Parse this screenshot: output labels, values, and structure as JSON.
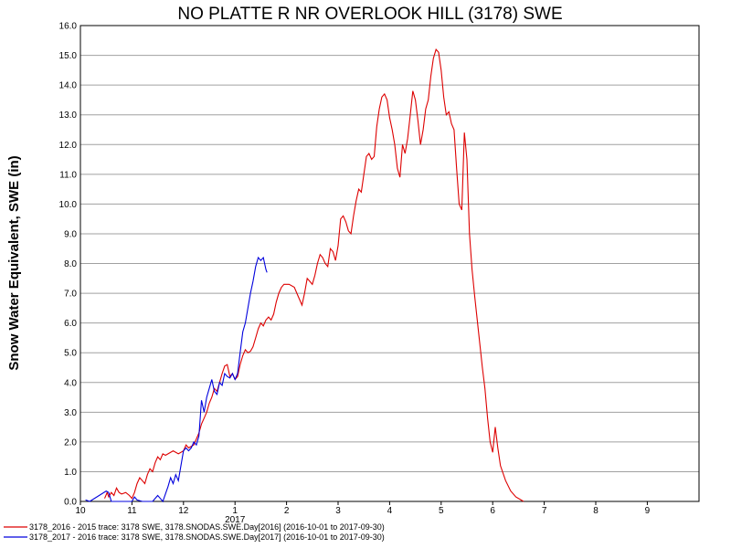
{
  "chart_data": {
    "type": "line",
    "title": "NO PLATTE R NR OVERLOOK HILL (3178) SWE",
    "ylabel": "Snow Water Equivalent, SWE (in)",
    "xlabel": "",
    "ylim": [
      0,
      16
    ],
    "yticks": [
      "0.0",
      "1.0",
      "2.0",
      "3.0",
      "4.0",
      "5.0",
      "6.0",
      "7.0",
      "8.0",
      "9.0",
      "10.0",
      "11.0",
      "12.0",
      "13.0",
      "14.0",
      "15.0",
      "16.0"
    ],
    "xlim": [
      0,
      12
    ],
    "xticks": [
      {
        "x": 0,
        "label": "10"
      },
      {
        "x": 1,
        "label": "11"
      },
      {
        "x": 2,
        "label": "12"
      },
      {
        "x": 3,
        "label": "1"
      },
      {
        "x": 4,
        "label": "2"
      },
      {
        "x": 5,
        "label": "3"
      },
      {
        "x": 6,
        "label": "4"
      },
      {
        "x": 7,
        "label": "5"
      },
      {
        "x": 8,
        "label": "6"
      },
      {
        "x": 9,
        "label": "7"
      },
      {
        "x": 10,
        "label": "8"
      },
      {
        "x": 11,
        "label": "9"
      }
    ],
    "year_label": {
      "x": 3,
      "label": "2017"
    },
    "grid": true,
    "legend_placement": "bottom",
    "series": [
      {
        "name": "3178_2016 - 2015 trace: 3178 SWE, 3178.SNODAS.SWE.Day[2016] (2016-10-01 to 2017-09-30)",
        "color": "#dd0000",
        "points": [
          [
            0.47,
            0.1
          ],
          [
            0.52,
            0.3
          ],
          [
            0.55,
            0.15
          ],
          [
            0.6,
            0.3
          ],
          [
            0.65,
            0.2
          ],
          [
            0.7,
            0.45
          ],
          [
            0.75,
            0.3
          ],
          [
            0.8,
            0.25
          ],
          [
            0.88,
            0.3
          ],
          [
            0.95,
            0.2
          ],
          [
            1.0,
            0.1
          ],
          [
            1.05,
            0.3
          ],
          [
            1.1,
            0.6
          ],
          [
            1.15,
            0.8
          ],
          [
            1.2,
            0.7
          ],
          [
            1.25,
            0.6
          ],
          [
            1.3,
            0.9
          ],
          [
            1.35,
            1.1
          ],
          [
            1.4,
            1.0
          ],
          [
            1.45,
            1.3
          ],
          [
            1.5,
            1.5
          ],
          [
            1.55,
            1.4
          ],
          [
            1.6,
            1.6
          ],
          [
            1.65,
            1.55
          ],
          [
            1.7,
            1.6
          ],
          [
            1.8,
            1.7
          ],
          [
            1.9,
            1.6
          ],
          [
            2.0,
            1.7
          ],
          [
            2.05,
            1.9
          ],
          [
            2.1,
            1.8
          ],
          [
            2.2,
            1.9
          ],
          [
            2.25,
            2.1
          ],
          [
            2.3,
            2.3
          ],
          [
            2.35,
            2.6
          ],
          [
            2.4,
            2.8
          ],
          [
            2.45,
            3.0
          ],
          [
            2.5,
            3.3
          ],
          [
            2.55,
            3.5
          ],
          [
            2.6,
            3.8
          ],
          [
            2.65,
            3.7
          ],
          [
            2.7,
            4.0
          ],
          [
            2.75,
            4.3
          ],
          [
            2.8,
            4.55
          ],
          [
            2.85,
            4.6
          ],
          [
            2.9,
            4.2
          ],
          [
            2.95,
            4.3
          ],
          [
            3.0,
            4.1
          ],
          [
            3.05,
            4.2
          ],
          [
            3.1,
            4.6
          ],
          [
            3.15,
            4.9
          ],
          [
            3.2,
            5.1
          ],
          [
            3.25,
            5.0
          ],
          [
            3.3,
            5.05
          ],
          [
            3.35,
            5.2
          ],
          [
            3.4,
            5.5
          ],
          [
            3.45,
            5.8
          ],
          [
            3.5,
            6.0
          ],
          [
            3.55,
            5.9
          ],
          [
            3.6,
            6.1
          ],
          [
            3.65,
            6.2
          ],
          [
            3.7,
            6.1
          ],
          [
            3.75,
            6.3
          ],
          [
            3.8,
            6.7
          ],
          [
            3.85,
            7.0
          ],
          [
            3.9,
            7.2
          ],
          [
            3.95,
            7.3
          ],
          [
            4.05,
            7.3
          ],
          [
            4.15,
            7.2
          ],
          [
            4.2,
            7.0
          ],
          [
            4.25,
            6.8
          ],
          [
            4.3,
            6.6
          ],
          [
            4.35,
            7.0
          ],
          [
            4.4,
            7.5
          ],
          [
            4.45,
            7.4
          ],
          [
            4.5,
            7.3
          ],
          [
            4.55,
            7.6
          ],
          [
            4.6,
            8.0
          ],
          [
            4.65,
            8.3
          ],
          [
            4.7,
            8.2
          ],
          [
            4.75,
            8.0
          ],
          [
            4.8,
            7.9
          ],
          [
            4.85,
            8.5
          ],
          [
            4.9,
            8.4
          ],
          [
            4.95,
            8.1
          ],
          [
            5.0,
            8.6
          ],
          [
            5.05,
            9.5
          ],
          [
            5.1,
            9.6
          ],
          [
            5.15,
            9.4
          ],
          [
            5.2,
            9.1
          ],
          [
            5.25,
            9.0
          ],
          [
            5.3,
            9.6
          ],
          [
            5.35,
            10.1
          ],
          [
            5.4,
            10.5
          ],
          [
            5.45,
            10.4
          ],
          [
            5.5,
            11.0
          ],
          [
            5.55,
            11.6
          ],
          [
            5.6,
            11.7
          ],
          [
            5.65,
            11.5
          ],
          [
            5.7,
            11.6
          ],
          [
            5.75,
            12.6
          ],
          [
            5.8,
            13.2
          ],
          [
            5.85,
            13.6
          ],
          [
            5.9,
            13.7
          ],
          [
            5.95,
            13.5
          ],
          [
            6.0,
            12.9
          ],
          [
            6.05,
            12.5
          ],
          [
            6.1,
            12.0
          ],
          [
            6.15,
            11.2
          ],
          [
            6.2,
            10.9
          ],
          [
            6.25,
            12.0
          ],
          [
            6.3,
            11.7
          ],
          [
            6.35,
            12.2
          ],
          [
            6.4,
            13.0
          ],
          [
            6.45,
            13.8
          ],
          [
            6.5,
            13.5
          ],
          [
            6.55,
            12.8
          ],
          [
            6.6,
            12.0
          ],
          [
            6.65,
            12.5
          ],
          [
            6.7,
            13.2
          ],
          [
            6.75,
            13.5
          ],
          [
            6.8,
            14.3
          ],
          [
            6.85,
            14.9
          ],
          [
            6.9,
            15.2
          ],
          [
            6.95,
            15.1
          ],
          [
            7.0,
            14.5
          ],
          [
            7.05,
            13.6
          ],
          [
            7.1,
            13.0
          ],
          [
            7.15,
            13.1
          ],
          [
            7.2,
            12.7
          ],
          [
            7.25,
            12.5
          ],
          [
            7.3,
            11.2
          ],
          [
            7.35,
            10.0
          ],
          [
            7.4,
            9.8
          ],
          [
            7.45,
            12.4
          ],
          [
            7.5,
            11.5
          ],
          [
            7.55,
            9.0
          ],
          [
            7.6,
            7.8
          ],
          [
            7.65,
            6.9
          ],
          [
            7.7,
            6.1
          ],
          [
            7.75,
            5.3
          ],
          [
            7.8,
            4.5
          ],
          [
            7.85,
            3.8
          ],
          [
            7.9,
            2.8
          ],
          [
            7.95,
            2.0
          ],
          [
            8.0,
            1.65
          ],
          [
            8.05,
            2.5
          ],
          [
            8.1,
            1.8
          ],
          [
            8.15,
            1.2
          ],
          [
            8.25,
            0.7
          ],
          [
            8.35,
            0.35
          ],
          [
            8.45,
            0.15
          ],
          [
            8.55,
            0.05
          ],
          [
            8.6,
            0.0
          ]
        ]
      },
      {
        "name": "3178_2017 - 2016 trace: 3178 SWE, 3178.SNODAS.SWE.Day[2017] (2016-10-01 to 2017-09-30)",
        "color": "#0000dd",
        "points": [
          [
            0.1,
            0.05
          ],
          [
            0.18,
            0.0
          ],
          [
            0.5,
            0.35
          ],
          [
            0.55,
            0.3
          ],
          [
            0.6,
            0.0
          ],
          [
            1.0,
            0.0
          ],
          [
            1.05,
            0.15
          ],
          [
            1.1,
            0.05
          ],
          [
            1.2,
            0.0
          ],
          [
            1.4,
            0.0
          ],
          [
            1.5,
            0.2
          ],
          [
            1.55,
            0.1
          ],
          [
            1.6,
            0.0
          ],
          [
            1.7,
            0.5
          ],
          [
            1.75,
            0.8
          ],
          [
            1.8,
            0.6
          ],
          [
            1.85,
            0.9
          ],
          [
            1.9,
            0.7
          ],
          [
            1.95,
            1.2
          ],
          [
            2.0,
            1.7
          ],
          [
            2.05,
            1.8
          ],
          [
            2.1,
            1.7
          ],
          [
            2.15,
            1.8
          ],
          [
            2.2,
            2.0
          ],
          [
            2.25,
            1.9
          ],
          [
            2.3,
            2.2
          ],
          [
            2.35,
            3.4
          ],
          [
            2.4,
            3.0
          ],
          [
            2.45,
            3.5
          ],
          [
            2.5,
            3.8
          ],
          [
            2.55,
            4.1
          ],
          [
            2.6,
            3.7
          ],
          [
            2.65,
            3.6
          ],
          [
            2.7,
            4.0
          ],
          [
            2.75,
            3.9
          ],
          [
            2.8,
            4.3
          ],
          [
            2.85,
            4.2
          ],
          [
            2.9,
            4.15
          ],
          [
            2.95,
            4.3
          ],
          [
            3.0,
            4.1
          ],
          [
            3.05,
            4.3
          ],
          [
            3.1,
            5.0
          ],
          [
            3.15,
            5.7
          ],
          [
            3.2,
            6.0
          ],
          [
            3.25,
            6.5
          ],
          [
            3.3,
            7.0
          ],
          [
            3.35,
            7.4
          ],
          [
            3.4,
            7.9
          ],
          [
            3.45,
            8.2
          ],
          [
            3.5,
            8.1
          ],
          [
            3.55,
            8.2
          ],
          [
            3.6,
            7.8
          ],
          [
            3.62,
            7.7
          ]
        ]
      }
    ]
  }
}
